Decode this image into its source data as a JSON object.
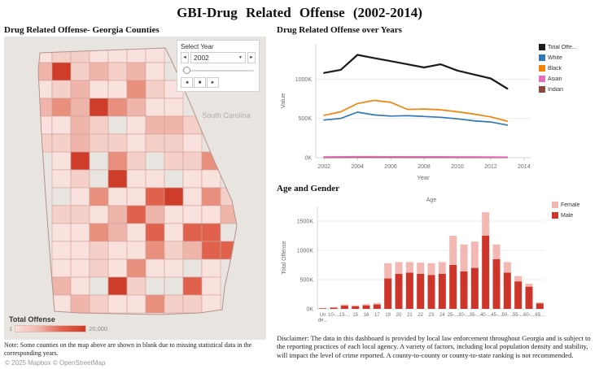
{
  "page": {
    "title": "GBI-Drug Related Offense (2002-2014)"
  },
  "map": {
    "title": "Drug Related Offense- Georgia Counties",
    "neighbor_label": "South Carolina",
    "year_control": {
      "label": "Select Year",
      "value": "2002",
      "caret": "▼",
      "prev": "◄",
      "next": "►",
      "step_back": "◄",
      "stop": "■",
      "step_forward": "►"
    },
    "legend": {
      "title": "Total Offense",
      "min": "1",
      "max": "20,000"
    },
    "note": "Note: Some counties on the map above are shown in blank due to missing statistical data in the corresponding years.",
    "attribution": "© 2025 Mapbox © OpenStreetMap",
    "colors": {
      "background": "#e8e5e1",
      "blank": "#e8e5e1",
      "counties": [
        "#f9e2dd",
        "#f5d0c8",
        "#f0b5aa",
        "#e98f7e",
        "#e0614c",
        "#cd3d29"
      ],
      "county_border": "#d0a099",
      "state_border": "#b5928a",
      "label": "#b3b0ab"
    }
  },
  "chart_data": [
    {
      "type": "line",
      "title": "Drug Related Offense over Years",
      "xlabel": "Year",
      "ylabel": "Value",
      "x": [
        2002,
        2003,
        2004,
        2005,
        2006,
        2007,
        2008,
        2009,
        2010,
        2011,
        2012,
        2013
      ],
      "xlim": [
        2001.5,
        2014.4
      ],
      "ylim": [
        0,
        1450
      ],
      "yticks": [
        0,
        500,
        1000
      ],
      "ytick_labels": [
        "0K",
        "500K",
        "1000K"
      ],
      "xticks": [
        2002,
        2004,
        2006,
        2008,
        2010,
        2012,
        2014
      ],
      "grid": true,
      "legend_position": "right",
      "series": [
        {
          "name": "Total Offe...",
          "color": "#1b1b1b",
          "values": [
            1080,
            1120,
            1310,
            1270,
            1230,
            1190,
            1150,
            1190,
            1110,
            1060,
            1010,
            880
          ]
        },
        {
          "name": "White",
          "color": "#2e79b5",
          "values": [
            480,
            500,
            580,
            545,
            530,
            535,
            525,
            515,
            495,
            470,
            455,
            415
          ]
        },
        {
          "name": "Black",
          "color": "#f2830b",
          "values": [
            540,
            585,
            690,
            730,
            705,
            615,
            620,
            610,
            585,
            555,
            520,
            465
          ]
        },
        {
          "name": "Asian",
          "color": "#e86ec0",
          "values": [
            10,
            11,
            13,
            13,
            12,
            11,
            11,
            11,
            10,
            10,
            9,
            8
          ]
        },
        {
          "name": "Indian",
          "color": "#8c4a3e",
          "values": [
            4,
            4,
            5,
            5,
            5,
            4,
            4,
            4,
            4,
            3,
            3,
            3
          ]
        }
      ]
    },
    {
      "type": "bar",
      "stacked": true,
      "panel_title": "Age and Gender",
      "title": "Age",
      "xlabel": "",
      "ylabel": "Total Offense",
      "categories": [
        "Un de...",
        "10-...",
        "13-...",
        "15",
        "16",
        "17",
        "19",
        "20",
        "21",
        "22",
        "23",
        "24",
        "25-...",
        "30-...",
        "35-...",
        "40-...",
        "45-...",
        "50-...",
        "55-...",
        "60-...",
        "65..."
      ],
      "ylim": [
        0,
        1750
      ],
      "yticks": [
        0,
        500,
        1000,
        1500
      ],
      "ytick_labels": [
        "0K",
        "500K",
        "1000K",
        "1500K"
      ],
      "legend_order": [
        "Female",
        "Male"
      ],
      "series": [
        {
          "name": "Male",
          "color": "#cd342a",
          "values": [
            10,
            20,
            55,
            45,
            60,
            75,
            520,
            600,
            620,
            600,
            580,
            600,
            750,
            640,
            700,
            1250,
            850,
            620,
            470,
            380,
            95
          ]
        },
        {
          "name": "Female",
          "color": "#f3b8b2",
          "values": [
            5,
            8,
            20,
            15,
            20,
            25,
            260,
            200,
            180,
            190,
            200,
            200,
            500,
            460,
            450,
            400,
            250,
            180,
            90,
            50,
            15
          ]
        }
      ]
    }
  ],
  "disclaimer": "Disclaimer: The data in this dashboard is provided by local law enforcement throughout Georgia and is subject to the reporting practices of each local agency.  A variety of factors, including local population density and stability, will impact the level of crime reported.  A county-to-county or county-to-state ranking is not recommended."
}
